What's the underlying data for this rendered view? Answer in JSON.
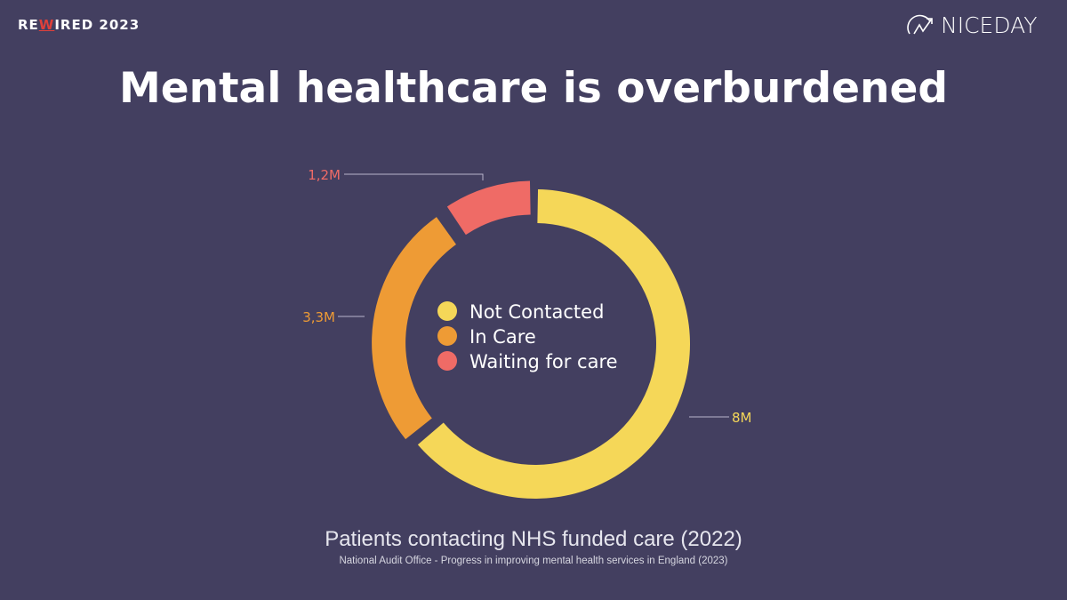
{
  "header": {
    "left_logo": {
      "prefix": "RE",
      "highlight": "W",
      "suffix": "IRED",
      "year": "2023"
    },
    "right_logo": "NICEDAY"
  },
  "title": "Mental healthcare is overburdened",
  "chart_data": {
    "type": "pie",
    "variant": "donut",
    "categories": [
      "Not Contacted",
      "In Care",
      "Waiting for care"
    ],
    "values": [
      8,
      3.3,
      1.2
    ],
    "data_labels": [
      "8M",
      "3,3M",
      "1,2M"
    ],
    "colors": [
      "#F5D758",
      "#EE9B35",
      "#EF6B66"
    ],
    "legend_position": "center",
    "title": "Patients contacting NHS funded care (2022)",
    "source": "National Audit Office - Progress in improving mental health services in England (2023)"
  },
  "colors": {
    "background": "#433F60",
    "text": "#FFFFFF"
  }
}
